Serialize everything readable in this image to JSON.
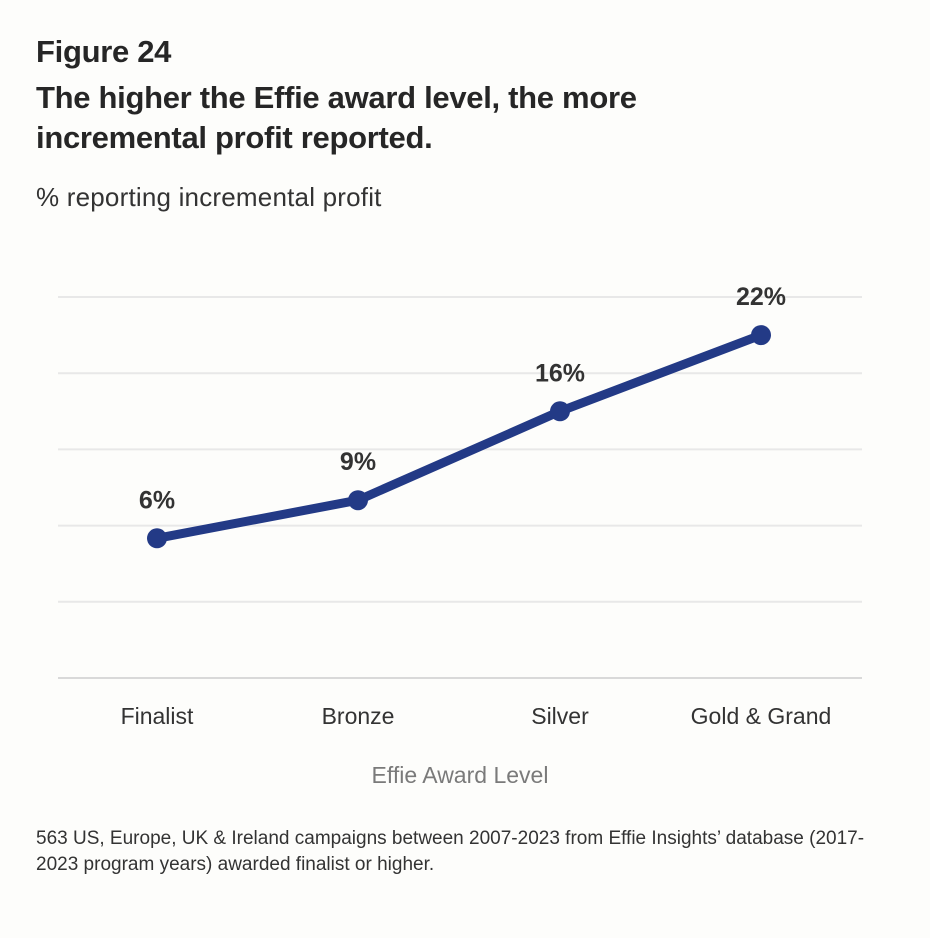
{
  "figure": {
    "label": "Figure 24",
    "title": "The higher the Effie award level, the more incremental profit reported.",
    "subtitle": "% reporting incremental profit",
    "footnote": "563 US, Europe, UK & Ireland campaigns between 2007-2023 from Effie Insights’ database (2017-2023 program years) awarded finalist or higher."
  },
  "chart_data": {
    "type": "line",
    "title": "The higher the Effie award level, the more incremental profit reported.",
    "ylabel": "% reporting incremental profit",
    "xlabel": "Effie Award Level",
    "categories": [
      "Finalist",
      "Bronze",
      "Silver",
      "Gold & Grand"
    ],
    "values": [
      6,
      9,
      16,
      22
    ],
    "data_labels": [
      "6%",
      "9%",
      "16%",
      "22%"
    ],
    "ylim": [
      -5,
      25
    ],
    "gridlines": 5,
    "grid": true,
    "line_color": "#233a86",
    "grid_color": "#e8e8e8"
  }
}
